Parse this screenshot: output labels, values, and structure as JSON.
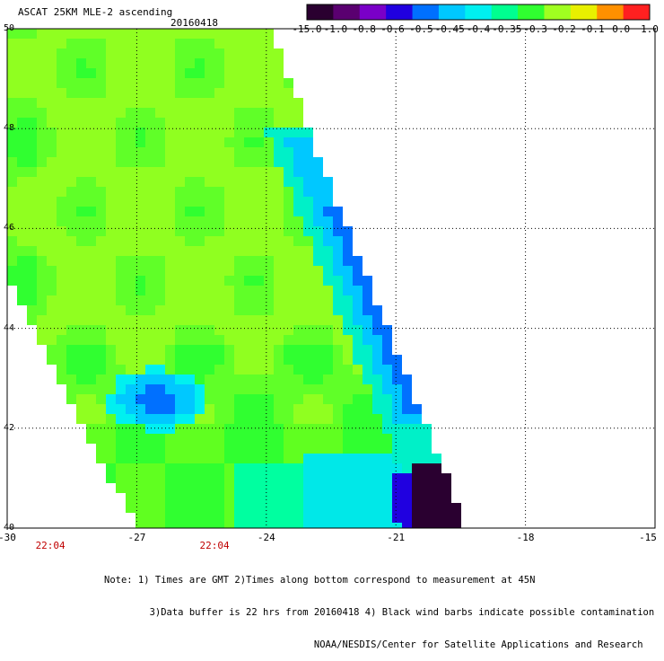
{
  "header": {
    "title": "ASCAT 25KM MLE-2 ascending",
    "date": "20160418"
  },
  "colorbar": {
    "labels": [
      "-15.0",
      "-1.0",
      "-0.8",
      "-0.6",
      "-0.5",
      "-0.45",
      "-0.4",
      "-0.35",
      "-0.3",
      "-0.2",
      "-0.1",
      "0.0",
      "1.0"
    ],
    "colors": [
      "#2a0030",
      "#5a0070",
      "#7a00c8",
      "#2000e0",
      "#0070ff",
      "#00c8ff",
      "#00f0f0",
      "#00ff90",
      "#30ff30",
      "#a0ff20",
      "#e8f000",
      "#ff9000",
      "#ff2020"
    ]
  },
  "axes": {
    "lat_labels": [
      "50",
      "48",
      "46",
      "44",
      "42",
      "40"
    ],
    "lat_values": [
      50,
      48,
      46,
      44,
      42,
      40
    ],
    "lon_labels": [
      "-30",
      "-27",
      "-24",
      "-21",
      "-18",
      "-15"
    ],
    "lon_values": [
      -30,
      -27,
      -24,
      -21,
      -18,
      -15
    ],
    "lon_range": [
      -30,
      -15
    ],
    "lat_range": [
      40,
      50
    ],
    "grid": true
  },
  "times": [
    {
      "label": "22:04",
      "lon": -29
    },
    {
      "label": "22:04",
      "lon": -25.2
    }
  ],
  "notes": [
    "Note: 1) Times are GMT 2)Times along bottom correspond to measurement at 45N",
    "        3)Data buffer is 22 hrs from 20160418 4) Black wind barbs indicate possible contamination",
    "                                     NOAA/NESDIS/Center for Satellite Applications and Research"
  ]
}
